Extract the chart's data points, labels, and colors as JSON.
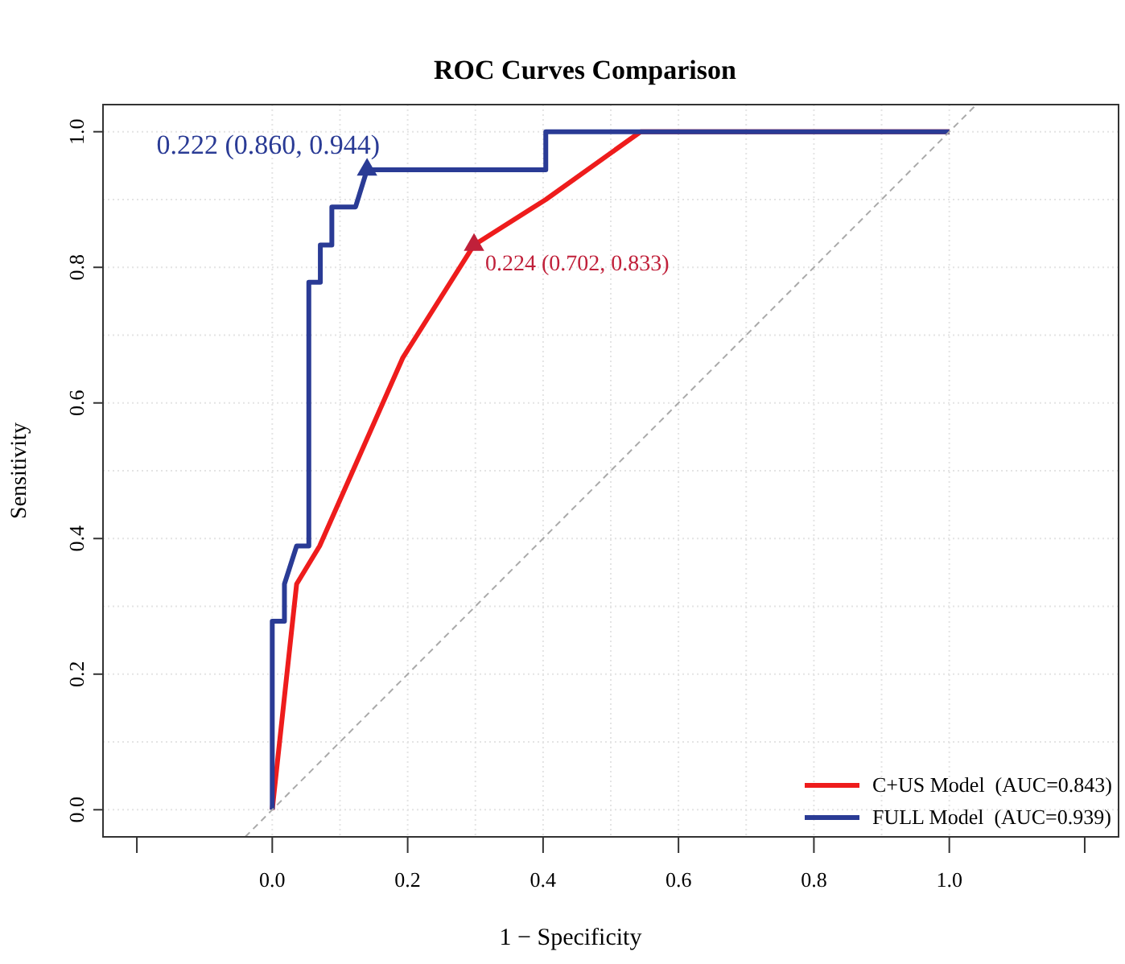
{
  "chart_data": {
    "type": "line",
    "title": "ROC Curves Comparison",
    "xlabel": "1 − Specificity",
    "ylabel": "Sensitivity",
    "xlim": [
      -0.25,
      1.25
    ],
    "ylim": [
      -0.04,
      1.04
    ],
    "xticks": [
      {
        "value": -0.2,
        "label": null
      },
      {
        "value": 0,
        "label": "0.0"
      },
      0.2,
      0.4,
      0.6,
      0.8,
      {
        "value": 1,
        "label": "1.0"
      },
      {
        "value": 1.2,
        "label": null
      }
    ],
    "yticks": [
      {
        "value": 0,
        "label": "0.0"
      },
      0.2,
      0.4,
      0.6,
      0.8,
      {
        "value": 1,
        "label": "1.0"
      }
    ],
    "grid": true,
    "legend": "bottom right",
    "line_style": "solid",
    "series": [
      {
        "name": "C+US Model  (AUC=0.843)",
        "color": "#ee1c1c",
        "x": [
          0,
          0.036,
          0.07,
          0.193,
          0.298,
          0.404,
          0.544,
          1
        ],
        "values": [
          0,
          0.333,
          0.389,
          0.667,
          0.833,
          0.9,
          1,
          1
        ]
      },
      {
        "name": "FULL Model  (AUC=0.939)",
        "color": "#2a3b95",
        "x": [
          0,
          0,
          0.018,
          0.018,
          0.036,
          0.054,
          0.054,
          0.071,
          0.071,
          0.088,
          0.088,
          0.123,
          0.14,
          0.404,
          0.404,
          1
        ],
        "values": [
          0,
          0.278,
          0.278,
          0.333,
          0.389,
          0.389,
          0.778,
          0.778,
          0.833,
          0.833,
          0.889,
          0.889,
          0.944,
          0.944,
          1,
          1
        ]
      },
      {
        "type": "line",
        "color": "#aaaaaa",
        "line_style": "dashed",
        "x": [
          -0.04,
          1.04
        ],
        "values": [
          -0.04,
          1.04
        ]
      },
      {
        "type": "scatter",
        "color": "#c0203a",
        "marker": "triangle",
        "x": [
          0.298
        ],
        "values": [
          0.833
        ]
      },
      {
        "type": "scatter",
        "color": "#2a3b95",
        "marker": "triangle",
        "x": [
          0.14
        ],
        "values": [
          0.944
        ]
      }
    ],
    "annotations": [
      {
        "text": "0.224 (0.702, 0.833)",
        "x": 0.298,
        "y": 0.833
      },
      {
        "text": "0.222 (0.860, 0.944)",
        "x": 0.14,
        "y": 0.944
      }
    ]
  }
}
